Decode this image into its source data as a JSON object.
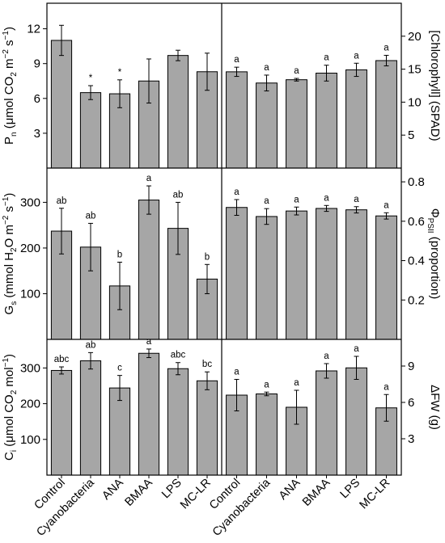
{
  "chart_data": [
    {
      "type": "bar",
      "ylabel": "Pn (μmol CO2 m−2 s−1)",
      "ylabel_parts": {
        "main": "P",
        "sub": "n",
        "units": " (μmol CO",
        "units_sub": "2",
        "units_rest": " m",
        "sup1": "−2",
        "s": " s",
        "sup2": "−1",
        "close": ")"
      },
      "ylim": [
        0,
        14.2
      ],
      "yticks": [
        3,
        6,
        9,
        12
      ],
      "axis_side": "left",
      "categories": [
        "Control",
        "Cyanobacteria",
        "ANA",
        "BMAA",
        "LPS",
        "MC-LR"
      ],
      "values": [
        11.0,
        6.5,
        6.4,
        7.5,
        9.7,
        8.3
      ],
      "errors": [
        1.3,
        0.6,
        1.2,
        1.9,
        0.45,
        1.6
      ],
      "labels": [
        "",
        "*",
        "*",
        "",
        "",
        ""
      ]
    },
    {
      "type": "bar",
      "ylabel": "[Chlorophyll] (SPAD)",
      "ylim": [
        0,
        25
      ],
      "yticks": [
        5,
        10,
        15,
        20
      ],
      "axis_side": "right",
      "categories": [
        "Control",
        "Cyanobacteria",
        "ANA",
        "BMAA",
        "LPS",
        "MC-LR"
      ],
      "values": [
        14.6,
        12.9,
        13.4,
        14.4,
        14.9,
        16.3
      ],
      "errors": [
        0.7,
        1.2,
        0.2,
        1.2,
        1.0,
        0.8
      ],
      "labels": [
        "a",
        "a",
        "a",
        "a",
        "a",
        "a"
      ]
    },
    {
      "type": "bar",
      "ylabel": "Gs (mmol H2O m−2 s−1)",
      "ylabel_parts": {
        "main": "G",
        "sub": "s",
        "units": " (mmol H",
        "units_sub": "2",
        "units_rest": "O m",
        "sup1": "−2",
        "s": " s",
        "sup2": "−1",
        "close": ")"
      },
      "ylim": [
        0,
        375
      ],
      "yticks": [
        100,
        200,
        300
      ],
      "axis_side": "left",
      "categories": [
        "Control",
        "Cyanobacteria",
        "ANA",
        "BMAA",
        "LPS",
        "MC-LR"
      ],
      "values": [
        237,
        202,
        117,
        305,
        243,
        132
      ],
      "errors": [
        50,
        52,
        52,
        31,
        57,
        32
      ],
      "labels": [
        "ab",
        "ab",
        "b",
        "a",
        "ab",
        "b"
      ]
    },
    {
      "type": "bar",
      "ylabel": "ΦPSII (proportion)",
      "ylabel_parts": {
        "main": "Φ",
        "sub": "PSII",
        "units": " (proportion)"
      },
      "ylim": [
        0,
        0.87
      ],
      "yticks": [
        0.2,
        0.4,
        0.6,
        0.8
      ],
      "axis_side": "right",
      "categories": [
        "Control",
        "Cyanobacteria",
        "ANA",
        "BMAA",
        "LPS",
        "MC-LR"
      ],
      "values": [
        0.67,
        0.624,
        0.652,
        0.665,
        0.658,
        0.627
      ],
      "errors": [
        0.04,
        0.04,
        0.02,
        0.015,
        0.016,
        0.016
      ],
      "labels": [
        "a",
        "a",
        "a",
        "a",
        "a",
        "a"
      ]
    },
    {
      "type": "bar",
      "ylabel": "Ci (μmol CO2 mol−1)",
      "ylabel_parts": {
        "main": "C",
        "sub": "i",
        "units": " (μmol CO",
        "units_sub": "2",
        "units_rest": " mol",
        "sup1": "−1",
        "close": ")"
      },
      "ylim": [
        0,
        380
      ],
      "yticks": [
        100,
        200,
        300
      ],
      "axis_side": "left",
      "categories": [
        "Control",
        "Cyanobacteria",
        "ANA",
        "BMAA",
        "LPS",
        "MC-LR"
      ],
      "values": [
        293,
        320,
        244,
        341,
        298,
        264
      ],
      "errors": [
        10,
        23,
        35,
        12,
        17,
        25
      ],
      "labels": [
        "abc",
        "ab",
        "c",
        "a",
        "abc",
        "bc"
      ]
    },
    {
      "type": "bar",
      "ylabel": "ΔFW (g)",
      "ylim": [
        0,
        11.2
      ],
      "yticks": [
        3,
        6,
        9
      ],
      "axis_side": "right",
      "categories": [
        "Control",
        "Cyanobacteria",
        "ANA",
        "BMAA",
        "LPS",
        "MC-LR"
      ],
      "values": [
        6.6,
        6.7,
        5.6,
        8.6,
        8.85,
        5.55
      ],
      "errors": [
        1.3,
        0.15,
        1.4,
        0.6,
        0.95,
        1.1
      ],
      "labels": [
        "a",
        "a",
        "a",
        "a",
        "a",
        "a"
      ]
    }
  ]
}
